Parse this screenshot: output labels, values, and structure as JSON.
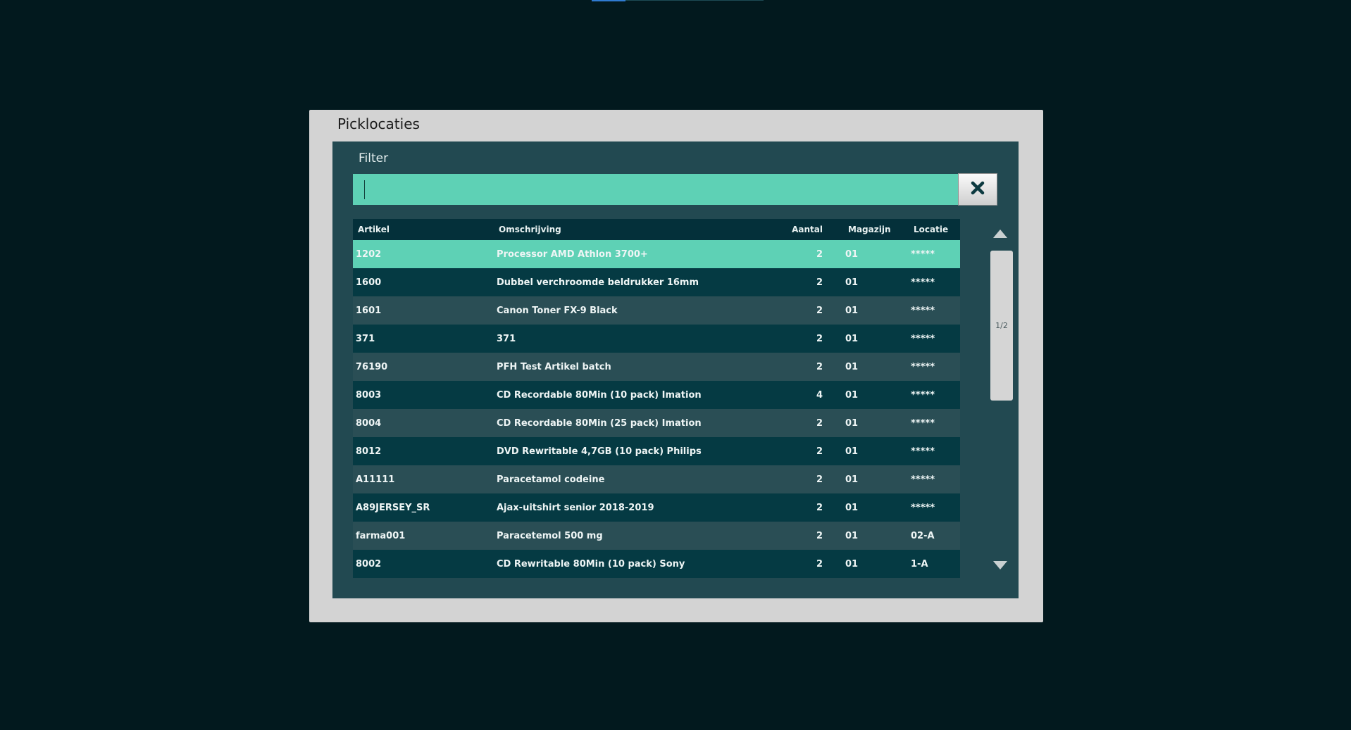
{
  "dialog": {
    "title": "Picklocaties"
  },
  "filter": {
    "label": "Filter",
    "value": "",
    "placeholder": "",
    "clear_icon": "close-icon"
  },
  "table": {
    "columns": [
      "Artikel",
      "Omschrijving",
      "Aantal",
      "Magazijn",
      "Locatie"
    ],
    "selected_row": 0,
    "rows": [
      {
        "artikel": "1202",
        "omschrijving": "Processor AMD Athlon 3700+",
        "aantal": "2",
        "magazijn": "01",
        "locatie": "*****"
      },
      {
        "artikel": "1600",
        "omschrijving": "Dubbel verchroomde beldrukker 16mm",
        "aantal": "2",
        "magazijn": "01",
        "locatie": "*****"
      },
      {
        "artikel": "1601",
        "omschrijving": "Canon Toner FX-9 Black",
        "aantal": "2",
        "magazijn": "01",
        "locatie": "*****"
      },
      {
        "artikel": "371",
        "omschrijving": "371",
        "aantal": "2",
        "magazijn": "01",
        "locatie": "*****"
      },
      {
        "artikel": "76190",
        "omschrijving": "PFH Test Artikel batch",
        "aantal": "2",
        "magazijn": "01",
        "locatie": "*****"
      },
      {
        "artikel": "8003",
        "omschrijving": "CD Recordable 80Min (10 pack) Imation",
        "aantal": "4",
        "magazijn": "01",
        "locatie": "*****"
      },
      {
        "artikel": "8004",
        "omschrijving": "CD Recordable 80Min (25 pack) Imation",
        "aantal": "2",
        "magazijn": "01",
        "locatie": "*****"
      },
      {
        "artikel": "8012",
        "omschrijving": "DVD Rewritable 4,7GB (10 pack) Philips",
        "aantal": "2",
        "magazijn": "01",
        "locatie": "*****"
      },
      {
        "artikel": "A11111",
        "omschrijving": "Paracetamol codeine",
        "aantal": "2",
        "magazijn": "01",
        "locatie": "*****"
      },
      {
        "artikel": "A89JERSEY_SR",
        "omschrijving": "Ajax-uitshirt senior 2018-2019",
        "aantal": "2",
        "magazijn": "01",
        "locatie": "*****"
      },
      {
        "artikel": "farma001",
        "omschrijving": "Paracetemol 500 mg",
        "aantal": "2",
        "magazijn": "01",
        "locatie": "02-A"
      },
      {
        "artikel": "8002",
        "omschrijving": "CD Rewritable 80Min (10 pack) Sony",
        "aantal": "2",
        "magazijn": "01",
        "locatie": "1-A"
      }
    ]
  },
  "pagination": {
    "page_indicator": "1/2",
    "up_icon": "triangle-up-icon",
    "down_icon": "triangle-down-icon"
  },
  "colors": {
    "background": "#02191e",
    "dialog": "#d3d3d3",
    "panel": "#224951",
    "accent": "#5ed1b5",
    "row_dark": "#053a43",
    "row_light": "#2a4e55"
  }
}
